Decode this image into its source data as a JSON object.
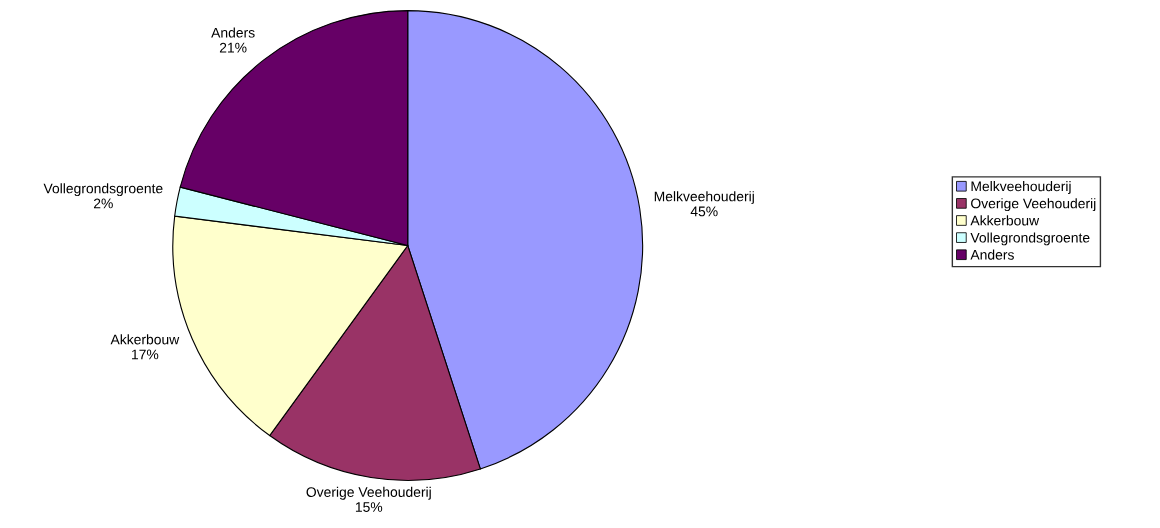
{
  "chart_data": {
    "type": "pie",
    "categories": [
      "Melkveehouderij",
      "Overige Veehouderij",
      "Akkerbouw",
      "Vollegrondsgroente",
      "Anders"
    ],
    "values": [
      45,
      15,
      17,
      2,
      21
    ],
    "colors": [
      "#9999ff",
      "#993366",
      "#ffffcc",
      "#ccffff",
      "#660066"
    ],
    "value_labels": [
      "45%",
      "15%",
      "17%",
      "2%",
      "21%"
    ],
    "legend": "right"
  }
}
